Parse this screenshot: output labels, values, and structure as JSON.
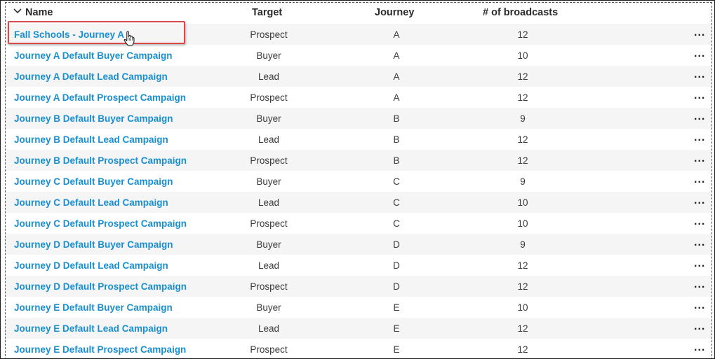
{
  "columns": {
    "name": "Name",
    "target": "Target",
    "journey": "Journey",
    "broadcasts": "# of broadcasts"
  },
  "icons": {
    "sort": "chevron-down-icon",
    "more": "ellipsis-icon",
    "cursor": "hand-pointer-icon"
  },
  "colors": {
    "link": "#1a8fd0",
    "highlight_border": "#d94848",
    "row_alt": "#f5f5f5"
  },
  "more_label": "...",
  "rows": [
    {
      "name": "Fall Schools - Journey A",
      "target": "Prospect",
      "journey": "A",
      "broadcasts": "12"
    },
    {
      "name": "Journey A Default Buyer Campaign",
      "target": "Buyer",
      "journey": "A",
      "broadcasts": "10"
    },
    {
      "name": "Journey A Default Lead Campaign",
      "target": "Lead",
      "journey": "A",
      "broadcasts": "12"
    },
    {
      "name": "Journey A Default Prospect Campaign",
      "target": "Prospect",
      "journey": "A",
      "broadcasts": "12"
    },
    {
      "name": "Journey B Default Buyer Campaign",
      "target": "Buyer",
      "journey": "B",
      "broadcasts": "9"
    },
    {
      "name": "Journey B Default Lead Campaign",
      "target": "Lead",
      "journey": "B",
      "broadcasts": "12"
    },
    {
      "name": "Journey B Default Prospect Campaign",
      "target": "Prospect",
      "journey": "B",
      "broadcasts": "12"
    },
    {
      "name": "Journey C Default Buyer Campaign",
      "target": "Buyer",
      "journey": "C",
      "broadcasts": "9"
    },
    {
      "name": "Journey C Default Lead Campaign",
      "target": "Lead",
      "journey": "C",
      "broadcasts": "10"
    },
    {
      "name": "Journey C Default Prospect Campaign",
      "target": "Prospect",
      "journey": "C",
      "broadcasts": "10"
    },
    {
      "name": "Journey D Default Buyer Campaign",
      "target": "Buyer",
      "journey": "D",
      "broadcasts": "9"
    },
    {
      "name": "Journey D Default Lead Campaign",
      "target": "Lead",
      "journey": "D",
      "broadcasts": "12"
    },
    {
      "name": "Journey D Default Prospect Campaign",
      "target": "Prospect",
      "journey": "D",
      "broadcasts": "12"
    },
    {
      "name": "Journey E Default Buyer Campaign",
      "target": "Buyer",
      "journey": "E",
      "broadcasts": "10"
    },
    {
      "name": "Journey E Default Lead Campaign",
      "target": "Lead",
      "journey": "E",
      "broadcasts": "12"
    },
    {
      "name": "Journey E Default Prospect Campaign",
      "target": "Prospect",
      "journey": "E",
      "broadcasts": "12"
    }
  ]
}
